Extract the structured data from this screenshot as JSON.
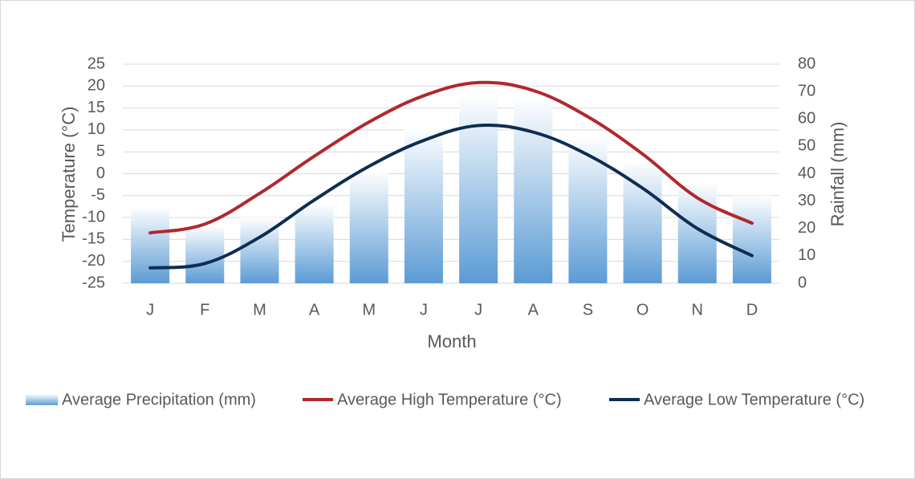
{
  "chart_data": {
    "type": "bar+line",
    "title": "",
    "categories": [
      "J",
      "F",
      "M",
      "A",
      "M",
      "J",
      "J",
      "A",
      "S",
      "O",
      "N",
      "D"
    ],
    "xlabel": "Month",
    "ylabel_left": "Temperature (°C)",
    "ylabel_right": "Rainfall (mm)",
    "y_left": {
      "min": -25,
      "max": 25,
      "step": 5,
      "ticks": [
        "-25",
        "-20",
        "-15",
        "-10",
        "-5",
        "0",
        "5",
        "10",
        "15",
        "20",
        "25"
      ]
    },
    "y_right": {
      "min": 0,
      "max": 80,
      "step": 10,
      "ticks": [
        "0",
        "10",
        "20",
        "30",
        "40",
        "50",
        "60",
        "70",
        "80"
      ]
    },
    "grid": true,
    "legend_position": "bottom",
    "series": [
      {
        "name": "Average Precipitation (mm)",
        "kind": "bar",
        "axis": "right",
        "color_top": "#ffffff",
        "color_bottom": "#5b9bd5",
        "values": [
          28,
          21,
          24,
          29,
          41,
          57,
          69,
          68,
          54,
          45,
          37,
          32
        ]
      },
      {
        "name": "Average High Temperature (°C)",
        "kind": "line",
        "axis": "left",
        "color": "#b0282d",
        "values": [
          -13.5,
          -11.5,
          -4.5,
          4,
          11.8,
          17.8,
          20.8,
          19,
          13,
          4.5,
          -5.5,
          -11.3
        ]
      },
      {
        "name": "Average Low Temperature (°C)",
        "kind": "line",
        "axis": "left",
        "color": "#0d2d52",
        "values": [
          -21.5,
          -20.5,
          -14.5,
          -6,
          1.7,
          7.6,
          11,
          9.5,
          4.3,
          -3.3,
          -12.5,
          -18.7
        ]
      }
    ]
  }
}
